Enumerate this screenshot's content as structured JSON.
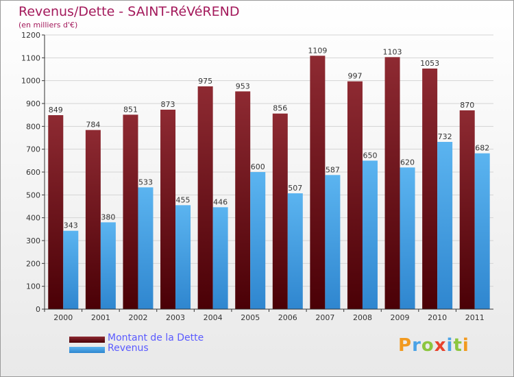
{
  "title": "Revenus/Dette - SAINT-RéVéREND",
  "subtitle": "(en milliers d'€)",
  "legend": [
    {
      "label": "Montant de la Dette",
      "color": "#6e0c14"
    },
    {
      "label": "Revenus",
      "color": "#4ba3e6"
    }
  ],
  "logo": {
    "text": "Proxiti"
  },
  "chart_data": {
    "type": "bar",
    "categories": [
      "2000",
      "2001",
      "2002",
      "2003",
      "2004",
      "2005",
      "2006",
      "2007",
      "2008",
      "2009",
      "2010",
      "2011"
    ],
    "series": [
      {
        "name": "Montant de la Dette",
        "color": "#7a1a22",
        "values": [
          849,
          784,
          851,
          873,
          975,
          953,
          856,
          1109,
          997,
          1103,
          1053,
          870
        ]
      },
      {
        "name": "Revenus",
        "color": "#4ba3e6",
        "values": [
          343,
          380,
          533,
          455,
          446,
          600,
          507,
          587,
          650,
          620,
          732,
          682
        ]
      }
    ],
    "ylim": [
      0,
      1200
    ],
    "yticks": [
      0,
      100,
      200,
      300,
      400,
      500,
      600,
      700,
      800,
      900,
      1000,
      1100,
      1200
    ],
    "grid": true
  }
}
